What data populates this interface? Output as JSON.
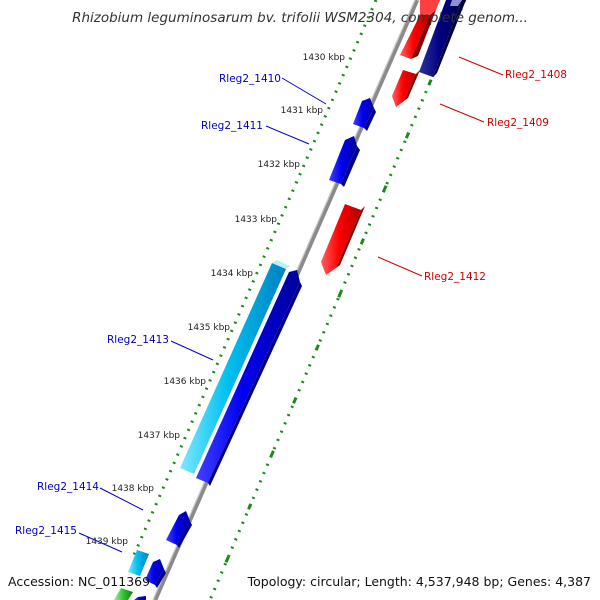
{
  "title": "Rhizobium leguminosarum bv. trifolii WSM2304, complete genom...",
  "footer": {
    "accession": "Accession: NC_011369",
    "stats": "Topology: circular; Length: 4,537,948 bp; Genes: 4,387"
  },
  "colors": {
    "backbone": "#8a8a8a",
    "forward_strand_gene": "#0000ee",
    "forward_strand_gene_dark": "#000080",
    "reverse_strand_gene": "#ee0000",
    "highlighted_gene": "#00c0f0",
    "tick": "#1a8a1a",
    "forward_label": "#0000bb",
    "reverse_label": "#cc0000"
  },
  "ruler_ticks": [
    "1430 kbp",
    "1431 kbp",
    "1432 kbp",
    "1433 kbp",
    "1434 kbp",
    "1435 kbp",
    "1436 kbp",
    "1437 kbp",
    "1438 kbp",
    "1439 kbp"
  ],
  "genes": [
    {
      "name": "Rleg2_1408",
      "strand": "reverse"
    },
    {
      "name": "Rleg2_1409",
      "strand": "reverse"
    },
    {
      "name": "Rleg2_1410",
      "strand": "forward"
    },
    {
      "name": "Rleg2_1411",
      "strand": "forward"
    },
    {
      "name": "Rleg2_1412",
      "strand": "reverse"
    },
    {
      "name": "Rleg2_1413",
      "strand": "forward"
    },
    {
      "name": "Rleg2_1414",
      "strand": "forward"
    },
    {
      "name": "Rleg2_1415",
      "strand": "forward"
    }
  ]
}
